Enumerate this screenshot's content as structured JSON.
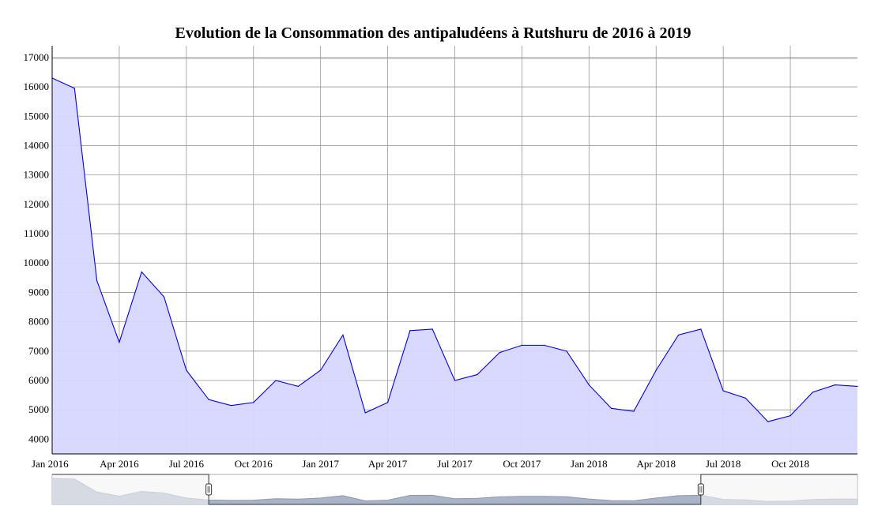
{
  "chart_data": {
    "type": "area",
    "title": "Evolution de la Consommation des antipaludéens à Rutshuru de 2016 à 2019",
    "xlabel": "",
    "ylabel": "",
    "x_ticks": [
      "Jan 2016",
      "Apr 2016",
      "Jul 2016",
      "Oct 2016",
      "Jan 2017",
      "Apr 2017",
      "Jul 2017",
      "Oct 2017",
      "Jan 2018",
      "Apr 2018",
      "Jul 2018",
      "Oct 2018"
    ],
    "y_ticks": [
      4000,
      5000,
      6000,
      7000,
      8000,
      9000,
      10000,
      11000,
      12000,
      13000,
      14000,
      15000,
      16000,
      17000
    ],
    "ylim": [
      3500,
      17400
    ],
    "x_range": [
      "2016-01",
      "2019-01"
    ],
    "grid": true,
    "series": [
      {
        "x": [
          "2016-01",
          "2016-02",
          "2016-03",
          "2016-04",
          "2016-05",
          "2016-06",
          "2016-07",
          "2016-08",
          "2016-09",
          "2016-10",
          "2016-11",
          "2016-12",
          "2017-01",
          "2017-02",
          "2017-03",
          "2017-04",
          "2017-05",
          "2017-06",
          "2017-07",
          "2017-08",
          "2017-09",
          "2017-10",
          "2017-11",
          "2017-12",
          "2018-01",
          "2018-02",
          "2018-03",
          "2018-04",
          "2018-05",
          "2018-06",
          "2018-07",
          "2018-08",
          "2018-09",
          "2018-10",
          "2018-11",
          "2018-12",
          "2019-01"
        ],
        "values": [
          16300,
          15950,
          9400,
          7300,
          9700,
          8850,
          6350,
          5350,
          5150,
          5250,
          6000,
          5800,
          6350,
          7550,
          4900,
          5250,
          7700,
          7750,
          6000,
          6200,
          6950,
          7200,
          7200,
          7000,
          5850,
          5050,
          4950,
          6350,
          7550,
          7750,
          5650,
          5400,
          4600,
          4800,
          5600,
          5850,
          5800
        ]
      }
    ],
    "navigator": {
      "window_start": "2016-08",
      "window_end": "2018-06"
    },
    "colors": {
      "line": "#0000ee",
      "fill": "#d7d7ff",
      "grid": "#999999",
      "navigator_line": "#8c98b0",
      "navigator_fill_selected": "#aab4c8",
      "navigator_fill_unselected": "#dfe2e8",
      "navigator_mask": "#f4f4f4"
    }
  }
}
